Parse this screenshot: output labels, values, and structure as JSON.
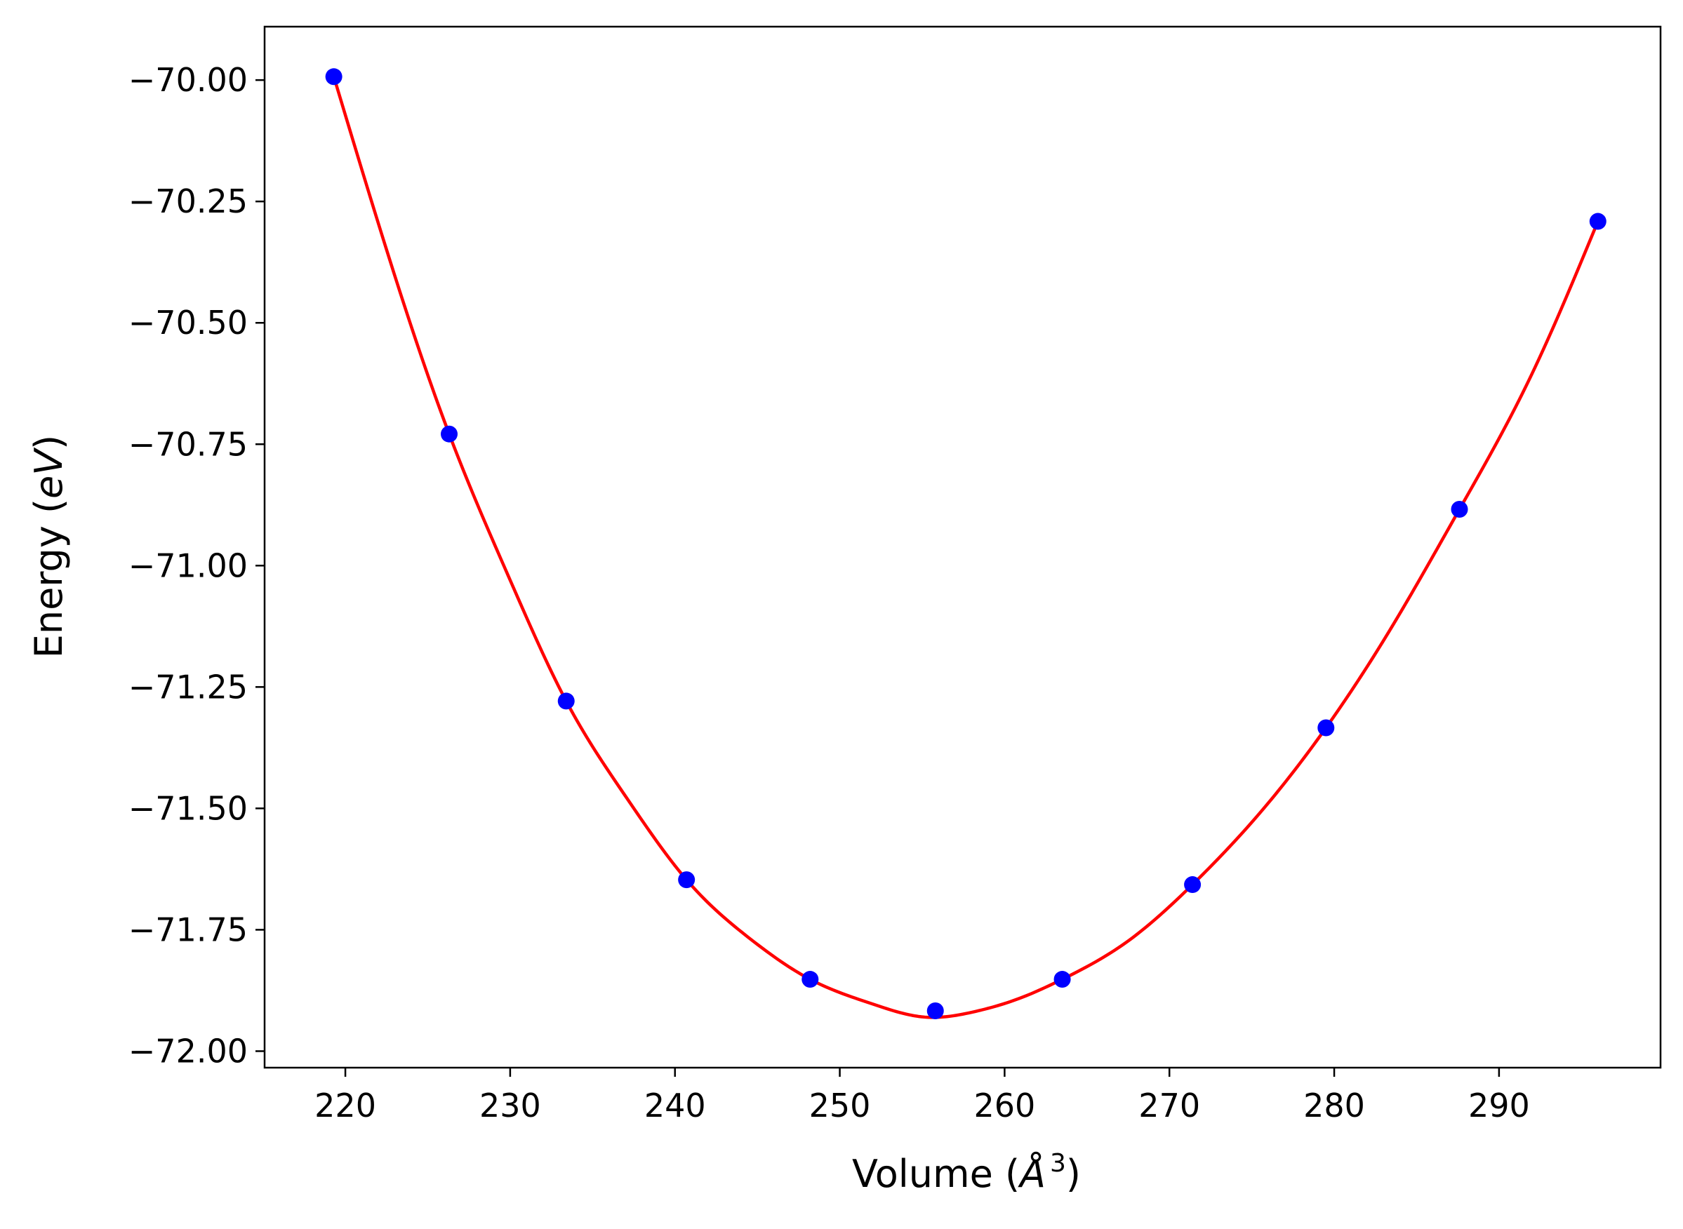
{
  "chart_data": {
    "type": "scatter",
    "xlabel": "Volume (Å³)",
    "ylabel": "Energy (eV)",
    "xlabel_parts": {
      "prefix": "Volume (",
      "symbol": "Å",
      "exponent": "3",
      "suffix": ")"
    },
    "ylabel_parts": {
      "prefix": "Energy (",
      "unit": "eV",
      "suffix": ")"
    },
    "xlim": [
      215.1,
      299.8
    ],
    "ylim": [
      -72.034,
      -69.89
    ],
    "xticks": [
      220,
      230,
      240,
      250,
      260,
      270,
      280,
      290
    ],
    "xtick_labels": [
      "220",
      "230",
      "240",
      "250",
      "260",
      "270",
      "280",
      "290"
    ],
    "yticks": [
      -70.0,
      -70.25,
      -70.5,
      -70.75,
      -71.0,
      -71.25,
      -71.5,
      -71.75,
      -72.0
    ],
    "ytick_labels": [
      "−70.00",
      "−70.25",
      "−70.50",
      "−70.75",
      "−71.00",
      "−71.25",
      "−71.50",
      "−71.75",
      "−72.00"
    ],
    "grid": false,
    "series": [
      {
        "kind": "points",
        "color": "#0000ff",
        "x": [
          219.3,
          226.3,
          233.4,
          240.7,
          248.2,
          255.8,
          263.5,
          271.4,
          279.5,
          287.6,
          296.0
        ],
        "y": [
          -69.993,
          -70.729,
          -71.279,
          -71.647,
          -71.852,
          -71.917,
          -71.852,
          -71.657,
          -71.334,
          -70.884,
          -70.291
        ]
      },
      {
        "kind": "fit_curve",
        "color": "#ff0000",
        "x": [
          219.3,
          223.0,
          226.3,
          230.0,
          233.4,
          237.0,
          240.7,
          244.5,
          248.2,
          252.0,
          255.2,
          258.0,
          261.0,
          263.5,
          267.5,
          271.4,
          275.5,
          279.5,
          283.5,
          287.6,
          292.0,
          296.0
        ],
        "y": [
          -69.993,
          -70.403,
          -70.729,
          -71.03,
          -71.279,
          -71.475,
          -71.647,
          -71.767,
          -71.852,
          -71.903,
          -71.93,
          -71.92,
          -71.89,
          -71.852,
          -71.773,
          -71.657,
          -71.509,
          -71.334,
          -71.126,
          -70.884,
          -70.605,
          -70.291
        ]
      }
    ]
  }
}
